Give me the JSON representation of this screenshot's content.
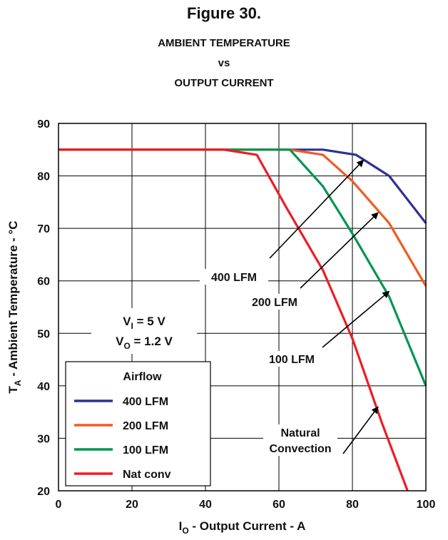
{
  "figure_label": "Figure 30.",
  "title_lines": [
    "AMBIENT TEMPERATURE",
    "vs",
    "OUTPUT CURRENT"
  ],
  "chart_data": {
    "type": "line",
    "title": "AMBIENT TEMPERATURE vs OUTPUT CURRENT",
    "xlabel": {
      "main": "I",
      "sub": "O",
      "rest": " - Output Current - A"
    },
    "ylabel": {
      "main": "T",
      "sub": "A",
      "rest": " - Ambient Temperature - °C"
    },
    "xlim": [
      0,
      100
    ],
    "ylim": [
      20,
      90
    ],
    "xticks": [
      0,
      20,
      40,
      60,
      80,
      100
    ],
    "yticks": [
      20,
      30,
      40,
      50,
      60,
      70,
      80,
      90
    ],
    "grid": true,
    "legend": {
      "title": "Airflow",
      "placement": "bottom-left"
    },
    "conditions": [
      {
        "main": "V",
        "sub": "I",
        "rest": " = 5 V"
      },
      {
        "main": "V",
        "sub": "O",
        "rest": " = 1.2 V"
      }
    ],
    "series": [
      {
        "name": "400 LFM",
        "color": "#2e3192",
        "x": [
          0,
          45,
          63,
          72,
          81,
          90,
          100
        ],
        "y": [
          85,
          85,
          85,
          85,
          84,
          80,
          71
        ]
      },
      {
        "name": "200 LFM",
        "color": "#f15a24",
        "x": [
          0,
          45,
          63,
          72,
          80,
          90,
          100
        ],
        "y": [
          85,
          85,
          85,
          84,
          79,
          71,
          59
        ]
      },
      {
        "name": "100 LFM",
        "color": "#00954f",
        "x": [
          0,
          45,
          63,
          72,
          80,
          90,
          100
        ],
        "y": [
          85,
          85,
          85,
          78,
          69,
          57,
          40
        ]
      },
      {
        "name": "Nat conv",
        "color": "#ed1c24",
        "x": [
          0,
          45,
          54,
          62,
          72,
          80,
          88,
          95
        ],
        "y": [
          85,
          85,
          84,
          74,
          62,
          49,
          33,
          20
        ]
      }
    ],
    "annotations": [
      {
        "lines": [
          "400 LFM"
        ],
        "target": [
          83,
          83
        ]
      },
      {
        "lines": [
          "200 LFM"
        ],
        "target": [
          87,
          73
        ]
      },
      {
        "lines": [
          "100 LFM"
        ],
        "target": [
          90,
          58
        ]
      },
      {
        "lines": [
          "Natural",
          "Convection"
        ],
        "target": [
          87,
          36
        ]
      }
    ]
  }
}
